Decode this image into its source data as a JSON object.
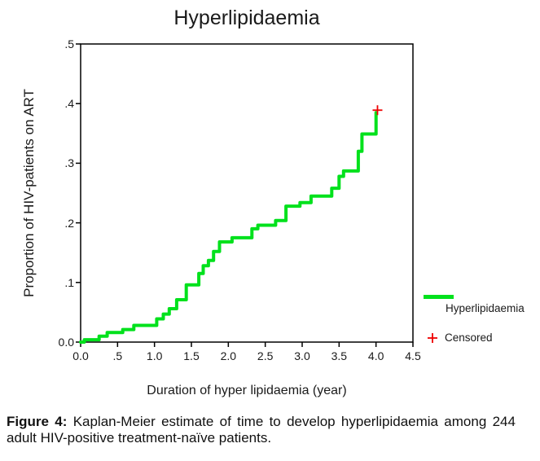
{
  "title": "Hyperlipidaemia",
  "axes": {
    "y_title": "Proportion of HIV-patients on ART",
    "x_title": "Duration of hyper lipidaemia (year)"
  },
  "legend": {
    "series_label": "Hyperlipidaemia",
    "censored_label": "Censored"
  },
  "caption": {
    "label": "Figure 4:",
    "text": "Kaplan-Meier estimate of time to develop hyperlipidaemia among 244 adult HIV-positive treatment-naïve patients."
  },
  "colors": {
    "curve": "#00e11c",
    "censored": "#ee0000",
    "axis": "#000000"
  },
  "chart_data": {
    "type": "line",
    "subtype": "kaplan-meier-step",
    "title": "Hyperlipidaemia",
    "xlabel": "Duration of hyper lipidaemia (year)",
    "ylabel": "Proportion of HIV-patients on ART",
    "xlim": [
      0,
      4.5
    ],
    "ylim": [
      0,
      0.5
    ],
    "grid": false,
    "legend_position": "right-bottom",
    "x_ticks": [
      {
        "v": 0.0,
        "label": "0.0"
      },
      {
        "v": 0.5,
        "label": ".5"
      },
      {
        "v": 1.0,
        "label": "1.0"
      },
      {
        "v": 1.5,
        "label": "1.5"
      },
      {
        "v": 2.0,
        "label": "2.0"
      },
      {
        "v": 2.5,
        "label": "2.5"
      },
      {
        "v": 3.0,
        "label": "3.0"
      },
      {
        "v": 3.5,
        "label": "3.5"
      },
      {
        "v": 4.0,
        "label": "4.0"
      },
      {
        "v": 4.5,
        "label": "4.5"
      }
    ],
    "y_ticks": [
      {
        "v": 0.0,
        "label": "0.0"
      },
      {
        "v": 0.1,
        "label": ".1"
      },
      {
        "v": 0.2,
        "label": ".2"
      },
      {
        "v": 0.3,
        "label": ".3"
      },
      {
        "v": 0.4,
        "label": ".4"
      },
      {
        "v": 0.5,
        "label": ".5"
      }
    ],
    "series": [
      {
        "name": "Hyperlipidaemia",
        "color": "#00e11c",
        "step_points": [
          [
            0.0,
            0.0
          ],
          [
            0.05,
            0.004
          ],
          [
            0.25,
            0.01
          ],
          [
            0.36,
            0.016
          ],
          [
            0.57,
            0.021
          ],
          [
            0.72,
            0.028
          ],
          [
            1.03,
            0.039
          ],
          [
            1.12,
            0.047
          ],
          [
            1.2,
            0.056
          ],
          [
            1.3,
            0.071
          ],
          [
            1.43,
            0.096
          ],
          [
            1.6,
            0.115
          ],
          [
            1.66,
            0.128
          ],
          [
            1.73,
            0.137
          ],
          [
            1.8,
            0.152
          ],
          [
            1.88,
            0.168
          ],
          [
            2.05,
            0.175
          ],
          [
            2.32,
            0.19
          ],
          [
            2.4,
            0.196
          ],
          [
            2.64,
            0.204
          ],
          [
            2.78,
            0.228
          ],
          [
            2.97,
            0.234
          ],
          [
            3.12,
            0.245
          ],
          [
            3.4,
            0.258
          ],
          [
            3.5,
            0.278
          ],
          [
            3.56,
            0.287
          ],
          [
            3.76,
            0.32
          ],
          [
            3.81,
            0.349
          ],
          [
            4.0,
            0.385
          ]
        ]
      }
    ],
    "censored_points": [
      [
        4.02,
        0.389
      ]
    ]
  }
}
